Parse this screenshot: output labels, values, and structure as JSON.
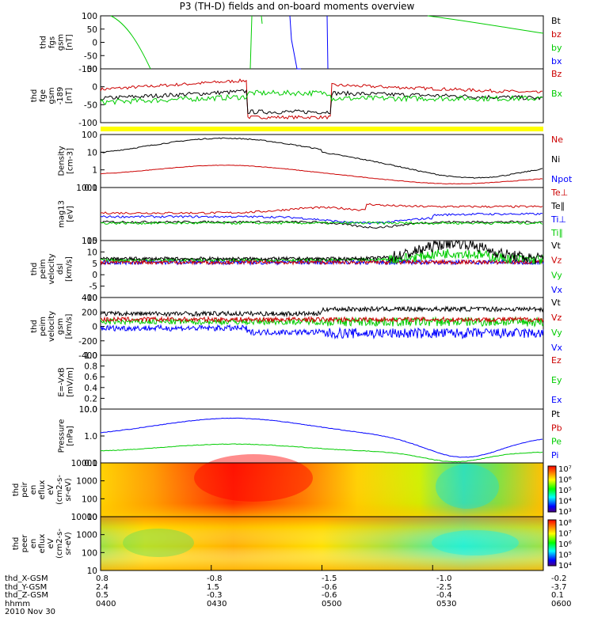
{
  "title": "P3 (TH-D) fields and on-board moments overview",
  "colors": {
    "black": "#000000",
    "red": "#cc0000",
    "green": "#00cc00",
    "blue": "#0000ff",
    "yellow": "#ffff00"
  },
  "chart_data": [
    {
      "type": "line",
      "ylabel": [
        "thd",
        "fgs",
        "gsm",
        "[nT]"
      ],
      "ylim": [
        -100,
        100
      ],
      "yticks": [
        "100",
        "50",
        "0",
        "-50",
        "-100"
      ],
      "legend": [
        {
          "name": "Bt",
          "color": "black"
        },
        {
          "name": "bz",
          "color": "red"
        },
        {
          "name": "by",
          "color": "green"
        },
        {
          "name": "bx",
          "color": "blue"
        }
      ]
    },
    {
      "type": "line",
      "ylabel": [
        "thd",
        "fge",
        "gsm",
        "-189",
        "[nT]"
      ],
      "ylim": [
        -125,
        75
      ],
      "yticks": [
        "50",
        "0",
        "-50",
        "-100"
      ],
      "legend": [
        {
          "name": "Bz",
          "color": "red"
        },
        {
          "name": "Bx",
          "color": "green"
        }
      ]
    },
    {
      "type": "line",
      "ylabel": [
        "Density",
        "[cm-3]"
      ],
      "log": true,
      "yticks": [
        "100",
        "10",
        "1",
        "0.1"
      ],
      "legend": [
        {
          "name": "Ne",
          "color": "red"
        },
        {
          "name": "Ni",
          "color": "black"
        },
        {
          "name": "Npot",
          "color": "blue"
        }
      ]
    },
    {
      "type": "line",
      "ylabel": [
        "mag13",
        "[eV]"
      ],
      "log": true,
      "yticks": [
        "1000",
        "100"
      ],
      "legend": [
        {
          "name": "Te⊥",
          "color": "red"
        },
        {
          "name": "Te∥",
          "color": "black"
        },
        {
          "name": "Ti⊥",
          "color": "blue"
        },
        {
          "name": "Ti∥",
          "color": "green"
        }
      ]
    },
    {
      "type": "line",
      "ylabel": [
        "thd",
        "peim",
        "velocity",
        "dsl",
        "[km/s]"
      ],
      "ylim": [
        -10,
        15
      ],
      "yticks": [
        "15",
        "10",
        "5",
        "0",
        "-5",
        "-10"
      ],
      "legend": [
        {
          "name": "Vt",
          "color": "black"
        },
        {
          "name": "Vz",
          "color": "red"
        },
        {
          "name": "Vy",
          "color": "green"
        },
        {
          "name": "Vx",
          "color": "blue"
        }
      ]
    },
    {
      "type": "line",
      "ylabel": [
        "thd",
        "peim",
        "velocity",
        "gsm",
        "[km/s]"
      ],
      "ylim": [
        -400,
        400
      ],
      "yticks": [
        "400",
        "200",
        "0",
        "-200",
        "-400"
      ],
      "legend": [
        {
          "name": "Vt",
          "color": "black"
        },
        {
          "name": "Vz",
          "color": "red"
        },
        {
          "name": "Vy",
          "color": "green"
        },
        {
          "name": "Vx",
          "color": "blue"
        }
      ]
    },
    {
      "type": "line",
      "ylabel": [
        "E=-VxB",
        "[mV/m]"
      ],
      "ylim": [
        0,
        1
      ],
      "yticks": [
        "1.0",
        "0.8",
        "0.6",
        "0.4",
        "0.2",
        "0.0"
      ],
      "legend": [
        {
          "name": "Ez",
          "color": "red"
        },
        {
          "name": "Ey",
          "color": "green"
        },
        {
          "name": "Ex",
          "color": "blue"
        }
      ]
    },
    {
      "type": "line",
      "ylabel": [
        "Pressure",
        "[nPa]"
      ],
      "log": true,
      "yticks": [
        "10.0",
        "1.0",
        "0.1"
      ],
      "legend": [
        {
          "name": "Pt",
          "color": "black"
        },
        {
          "name": "Pb",
          "color": "red"
        },
        {
          "name": "Pe",
          "color": "green"
        },
        {
          "name": "Pi",
          "color": "blue"
        }
      ]
    },
    {
      "type": "heatmap",
      "ylabel": [
        "thd",
        "peir",
        "en",
        "eflux",
        "eV",
        "(cm2-s-",
        "sr-eV)"
      ],
      "yticks": [
        "10000",
        "1000",
        "100",
        "10"
      ],
      "colorbar": [
        "10⁷",
        "10⁶",
        "10⁵",
        "10⁴",
        "10³"
      ]
    },
    {
      "type": "heatmap",
      "ylabel": [
        "thd",
        "peer",
        "en",
        "eflux",
        "eV",
        "(cm2-s-",
        "sr-eV)"
      ],
      "yticks": [
        "10000",
        "1000",
        "100",
        "10"
      ],
      "colorbar": [
        "10⁸",
        "10⁷",
        "10⁶",
        "10⁵",
        "10⁴"
      ]
    }
  ],
  "footer": {
    "rows": [
      {
        "label": "thd_X-GSM",
        "values": [
          "0.8",
          "-0.8",
          "-1.5",
          "-1.0",
          "-0.2"
        ]
      },
      {
        "label": "thd_Y-GSM",
        "values": [
          "2.4",
          "1.5",
          "-0.6",
          "-2.5",
          "-3.7"
        ]
      },
      {
        "label": "thd_Z-GSM",
        "values": [
          "0.5",
          "-0.3",
          "-0.6",
          "-0.4",
          "0.1"
        ]
      },
      {
        "label": "hhmm",
        "values": [
          "0400",
          "0430",
          "0500",
          "0530",
          "0600"
        ]
      }
    ],
    "date": "2010 Nov 30"
  }
}
